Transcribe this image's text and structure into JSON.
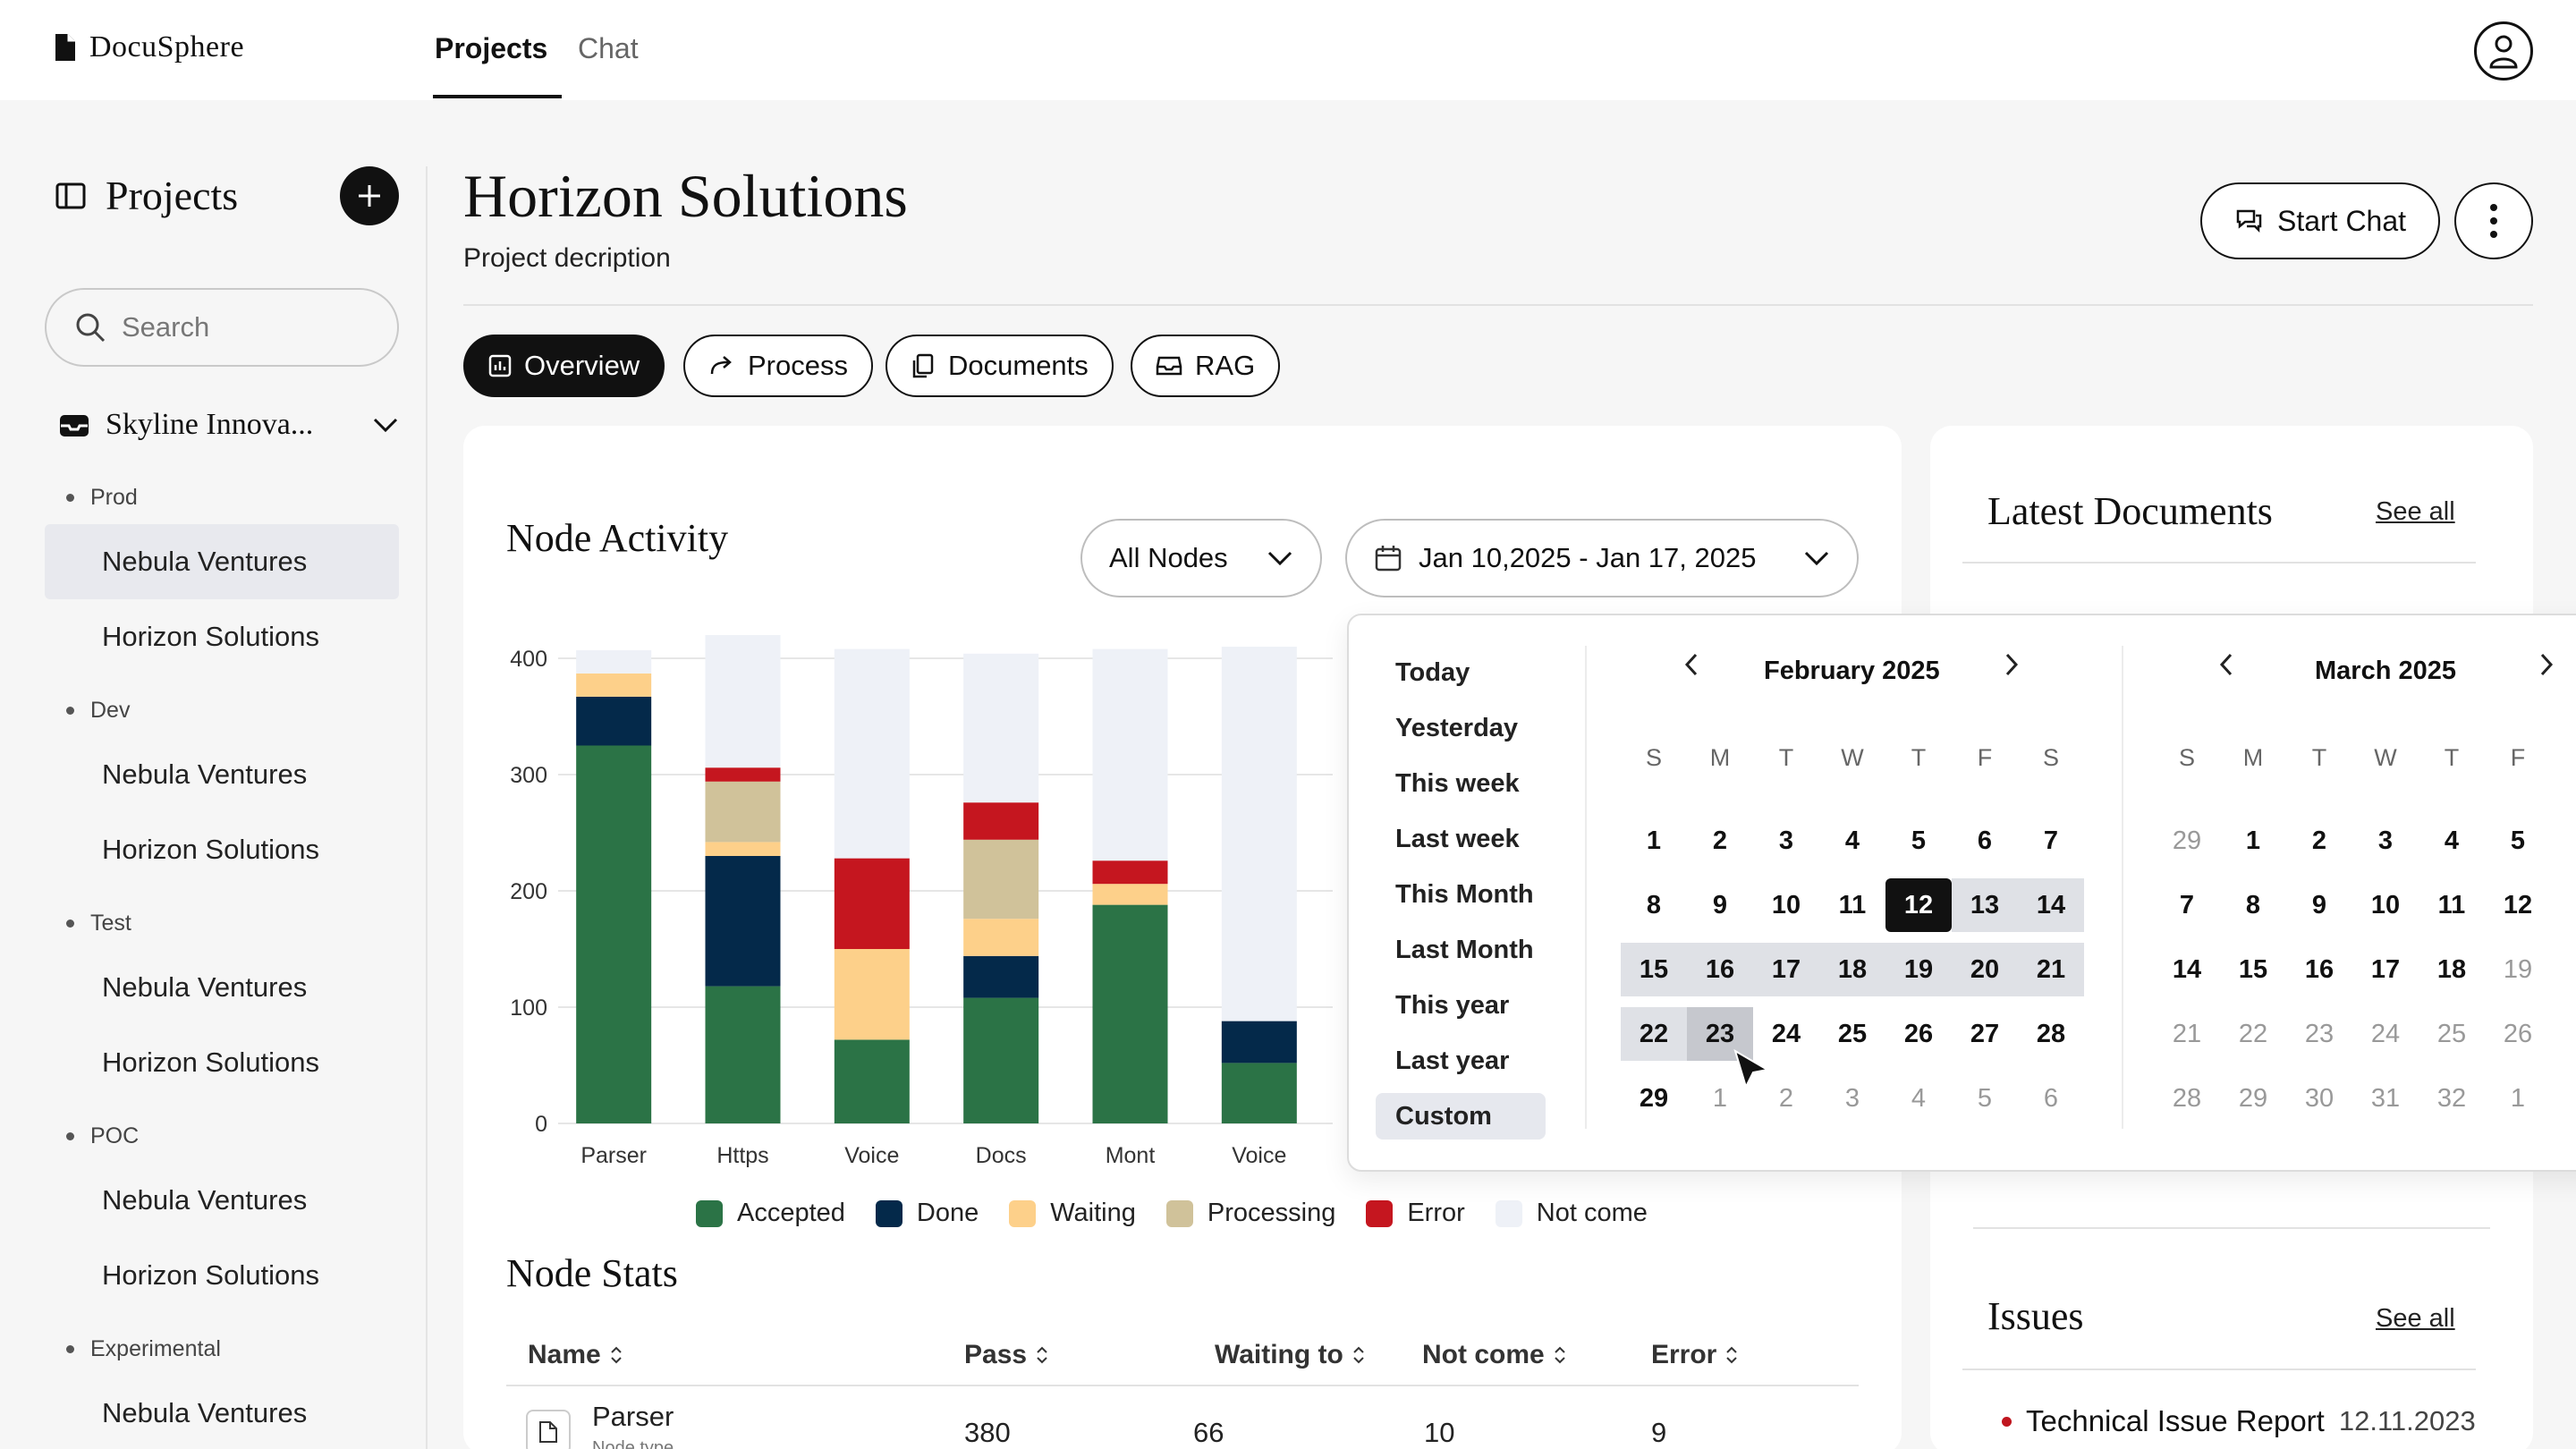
{
  "app": {
    "name": "DocuSphere"
  },
  "nav": {
    "tabs": [
      {
        "label": "Projects",
        "active": true
      },
      {
        "label": "Chat",
        "active": false
      }
    ]
  },
  "sidebar": {
    "title": "Projects",
    "search_placeholder": "Search",
    "workspace": "Skyline Innova...",
    "groups": [
      {
        "label": "Prod",
        "items": [
          "Nebula Ventures",
          "Horizon Solutions"
        ]
      },
      {
        "label": "Dev",
        "items": [
          "Nebula Ventures",
          "Horizon Solutions"
        ]
      },
      {
        "label": "Test",
        "items": [
          "Nebula Ventures",
          "Horizon Solutions"
        ]
      },
      {
        "label": "POC",
        "items": [
          "Nebula Ventures",
          "Horizon Solutions"
        ]
      },
      {
        "label": "Experimental",
        "items": [
          "Nebula Ventures"
        ]
      }
    ]
  },
  "page": {
    "title": "Horizon Solutions",
    "description": "Project decription",
    "start_chat": "Start Chat",
    "tabs": [
      "Overview",
      "Process",
      "Documents",
      "RAG"
    ]
  },
  "node_activity": {
    "title": "Node Activity",
    "node_filter": "All Nodes",
    "date_range": "Jan 10,2025 - Jan 17, 2025"
  },
  "chart_data": {
    "type": "bar",
    "stacked": true,
    "categories": [
      "Parser",
      "Https",
      "Voice",
      "Docs",
      "Mont",
      "Voice"
    ],
    "ylim": [
      0,
      400
    ],
    "yticks": [
      0,
      100,
      200,
      300,
      400
    ],
    "grid": true,
    "legend_position": "bottom",
    "series": [
      {
        "name": "Accepted",
        "color": "#2b7346",
        "values": [
          325,
          118,
          72,
          108,
          188,
          52
        ]
      },
      {
        "name": "Done",
        "color": "#04294a",
        "values": [
          42,
          112,
          0,
          36,
          0,
          36
        ]
      },
      {
        "name": "Waiting",
        "color": "#fdd08a",
        "values": [
          20,
          12,
          78,
          32,
          18,
          0
        ]
      },
      {
        "name": "Processing",
        "color": "#d0c29a",
        "values": [
          0,
          52,
          0,
          68,
          0,
          0
        ]
      },
      {
        "name": "Error",
        "color": "#c5161f",
        "values": [
          0,
          12,
          78,
          32,
          20,
          0
        ]
      },
      {
        "name": "Not come",
        "color": "#eef1f7",
        "values": [
          20,
          114,
          180,
          128,
          182,
          322
        ]
      }
    ]
  },
  "node_stats": {
    "title": "Node Stats",
    "columns": [
      "Name",
      "Pass",
      "Waiting to",
      "Not come",
      "Error"
    ],
    "rows": [
      {
        "name": "Parser",
        "sub": "Node type",
        "pass": "380",
        "waiting": "66",
        "not_come": "10",
        "error": "9"
      }
    ]
  },
  "latest_documents": {
    "title": "Latest Documents",
    "see_all": "See all"
  },
  "issues": {
    "title": "Issues",
    "see_all": "See all",
    "items": [
      {
        "title": "Technical Issue Report",
        "date": "12.11.2023"
      }
    ]
  },
  "date_picker": {
    "presets": [
      "Today",
      "Yesterday",
      "This week",
      "Last week",
      "This Month",
      "Last Month",
      "This year",
      "Last year",
      "Custom"
    ],
    "active_preset": "Custom",
    "weekdays": [
      "S",
      "M",
      "T",
      "W",
      "T",
      "F",
      "S"
    ],
    "months": [
      {
        "title": "February 2025",
        "days": [
          "1",
          "2",
          "3",
          "4",
          "5",
          "6",
          "7",
          "8",
          "9",
          "10",
          "11",
          "12",
          "13",
          "14",
          "15",
          "16",
          "17",
          "18",
          "19",
          "20",
          "21",
          "22",
          "23",
          "24",
          "25",
          "26",
          "27",
          "28",
          "29",
          "1",
          "2",
          "3",
          "4",
          "5",
          "6"
        ]
      },
      {
        "title": "March 2025",
        "days": [
          "29",
          "1",
          "2",
          "3",
          "4",
          "5",
          "7",
          "8",
          "9",
          "10",
          "11",
          "12",
          "14",
          "15",
          "16",
          "17",
          "18",
          "19",
          "21",
          "22",
          "23",
          "24",
          "25",
          "26",
          "28",
          "29",
          "30",
          "31",
          "32",
          "1"
        ]
      }
    ]
  },
  "colors": {
    "accent": "#111111",
    "error": "#c5161f",
    "surface": "#ffffff",
    "background": "#f6f6f6"
  }
}
